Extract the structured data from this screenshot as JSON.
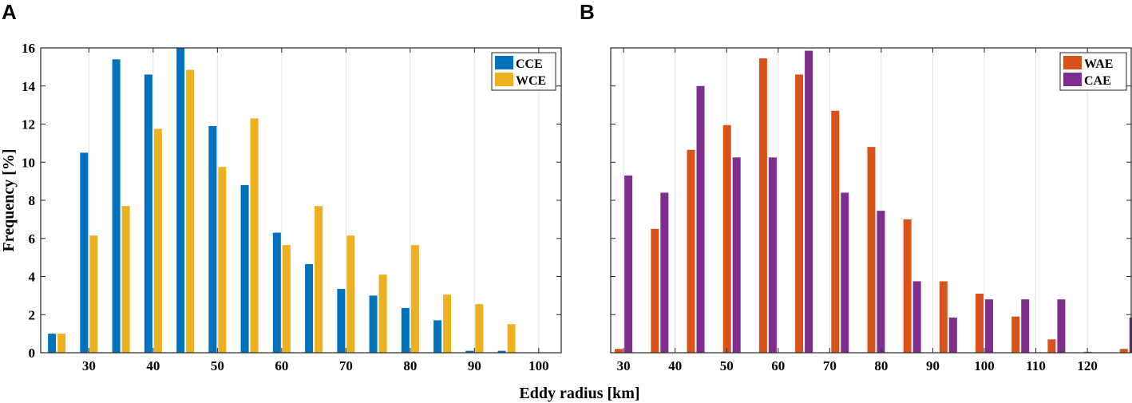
{
  "xlabel": "Eddy radius [km]",
  "ylabel": "Frequency [%]",
  "chart_data": [
    {
      "type": "bar",
      "panel": "A",
      "xlim": [
        22.5,
        103.5
      ],
      "ylim": [
        0,
        16
      ],
      "xticks": [
        30,
        40,
        50,
        60,
        70,
        80,
        90,
        100
      ],
      "yticks": [
        0,
        2,
        4,
        6,
        8,
        10,
        12,
        14,
        16
      ],
      "grid": "vertical",
      "legend_position": "top-right",
      "categories": [
        25,
        30,
        35,
        40,
        45,
        50,
        55,
        60,
        65,
        70,
        75,
        80,
        85,
        90,
        95,
        100
      ],
      "series": [
        {
          "name": "CCE",
          "color": "#0072BD",
          "values": [
            1.0,
            10.5,
            15.4,
            14.6,
            16.0,
            11.9,
            8.8,
            6.3,
            4.65,
            3.35,
            3.0,
            2.35,
            1.7,
            0.1,
            0.1,
            0.0
          ]
        },
        {
          "name": "WCE",
          "color": "#EDB120",
          "values": [
            1.0,
            6.15,
            7.7,
            11.75,
            14.85,
            9.75,
            12.3,
            5.65,
            7.7,
            6.15,
            4.1,
            5.65,
            3.05,
            2.55,
            1.5,
            0.0
          ]
        }
      ]
    },
    {
      "type": "bar",
      "panel": "B",
      "xlim": [
        27.5,
        128.5
      ],
      "ylim": [
        0,
        16
      ],
      "xticks": [
        30,
        40,
        50,
        60,
        70,
        80,
        90,
        100,
        110,
        120
      ],
      "yticks": [
        0,
        2,
        4,
        6,
        8,
        10,
        12,
        14,
        16
      ],
      "grid": "vertical",
      "legend_position": "top-right",
      "categories": [
        30,
        37,
        44,
        51,
        58,
        65,
        72,
        79,
        86,
        93,
        100,
        107,
        114,
        121,
        128
      ],
      "series": [
        {
          "name": "WAE",
          "color": "#D95319",
          "values": [
            0.2,
            6.5,
            10.65,
            11.95,
            15.45,
            14.6,
            12.7,
            10.8,
            7.0,
            3.75,
            3.1,
            1.9,
            0.7,
            0.05,
            0.2
          ]
        },
        {
          "name": "CAE",
          "color": "#7E2F8E",
          "values": [
            9.3,
            8.4,
            14.0,
            10.25,
            10.25,
            15.85,
            8.4,
            7.45,
            3.75,
            1.85,
            2.8,
            2.8,
            2.8,
            0.0,
            1.85
          ]
        }
      ]
    }
  ]
}
